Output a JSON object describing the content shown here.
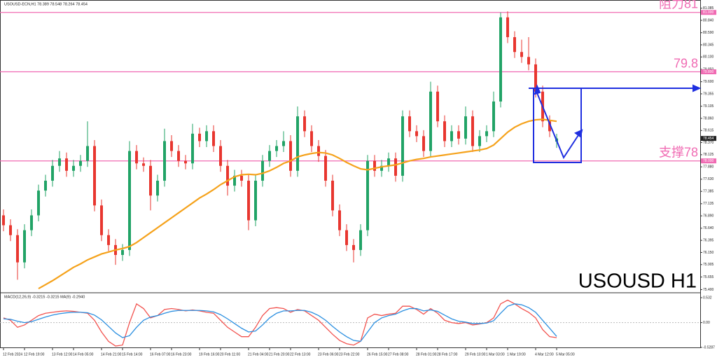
{
  "chart_data": {
    "type": "candlestick",
    "header": "USOUSD-ECN,H1 78.389 78.548 78.264 78.454",
    "title": "USOUSD H1",
    "categories": [
      "12 Feb 2024",
      null,
      null,
      "12 Feb 19:00",
      null,
      null,
      null,
      "13 Feb 12:00",
      null,
      null,
      "14 Feb 05:00",
      null,
      null,
      null,
      "14 Feb 21:00",
      null,
      null,
      "15 Feb 14:00",
      null,
      null,
      null,
      "16 Feb 07:00",
      null,
      null,
      "16 Feb 23:00",
      null,
      null,
      null,
      "19 Feb 16:00",
      null,
      null,
      "20 Feb 11:00",
      null,
      null,
      null,
      "21 Feb 04:00",
      null,
      null,
      "21 Feb 20:00",
      null,
      null,
      "22 Feb 13:00",
      null,
      null,
      null,
      "23 Feb 06:00",
      null,
      null,
      "23 Feb 22:00",
      null,
      null,
      null,
      "26 Feb 15:00",
      null,
      null,
      "27 Feb 08:00",
      null,
      null,
      null,
      "28 Feb 01:00",
      null,
      null,
      "28 Feb 17:00",
      null,
      null,
      null,
      "29 Feb 10:00",
      null,
      null,
      "1 Mar 03:00",
      null,
      null,
      "1 Mar 19:00",
      null,
      null,
      null,
      "4 Mar 12:00",
      null,
      null,
      "5 Mar 05:00"
    ],
    "open": [
      76.9,
      76.7,
      76.5,
      75.95,
      76.6,
      76.9,
      77.4,
      77.6,
      77.9,
      78.05,
      77.8,
      77.9,
      78.0,
      78.3,
      77.1,
      76.5,
      76.3,
      76.1,
      76.2,
      78.2,
      77.95,
      77.9,
      77.3,
      77.6,
      78.4,
      78.2,
      78.0,
      77.95,
      78.55,
      78.4,
      78.6,
      78.3,
      77.9,
      77.5,
      77.7,
      77.6,
      76.8,
      77.6,
      78.0,
      78.2,
      78.3,
      78.4,
      77.8,
      78.9,
      78.6,
      78.3,
      78.1,
      77.6,
      77.0,
      76.6,
      76.3,
      76.2,
      76.6,
      78.0,
      77.8,
      77.9,
      78.05,
      77.7,
      78.9,
      78.6,
      78.5,
      78.2,
      79.4,
      78.8,
      78.4,
      78.6,
      78.45,
      78.9,
      78.3,
      78.5,
      78.6,
      79.2,
      80.9,
      80.5,
      80.2,
      80.1,
      79.95,
      79.4,
      78.8,
      78.389
    ],
    "high": [
      77.02,
      76.82,
      76.62,
      76.72,
      77.02,
      77.52,
      77.72,
      78.02,
      78.2,
      78.17,
      78.02,
      78.12,
      78.8,
      78.42,
      77.22,
      76.62,
      76.42,
      76.32,
      78.4,
      78.32,
      78.07,
      78.02,
      77.72,
      78.65,
      78.52,
      78.32,
      78.12,
      78.75,
      78.67,
      78.72,
      78.72,
      78.42,
      78.02,
      77.82,
      77.82,
      77.72,
      77.72,
      78.12,
      78.32,
      78.42,
      78.6,
      78.52,
      79.1,
      79.02,
      78.72,
      78.42,
      78.22,
      77.72,
      77.12,
      76.72,
      76.42,
      76.72,
      78.12,
      78.12,
      78.02,
      78.17,
      78.17,
      79.02,
      79.02,
      78.72,
      78.62,
      79.6,
      79.52,
      78.92,
      78.72,
      78.72,
      79.1,
      79.02,
      78.62,
      78.72,
      79.4,
      81.0,
      81.02,
      80.62,
      80.45,
      80.5,
      80.07,
      79.52,
      78.92,
      78.548
    ],
    "low": [
      76.58,
      76.38,
      75.6,
      75.83,
      76.48,
      76.78,
      77.28,
      77.48,
      77.78,
      77.68,
      77.68,
      77.78,
      77.88,
      76.98,
      76.38,
      76.18,
      75.9,
      75.98,
      76.08,
      77.83,
      77.78,
      77.0,
      77.18,
      77.48,
      78.08,
      77.88,
      77.83,
      77.83,
      78.28,
      78.28,
      78.18,
      77.78,
      77.3,
      77.38,
      77.48,
      76.6,
      76.68,
      77.48,
      77.88,
      78.08,
      78.18,
      77.68,
      77.68,
      78.48,
      78.18,
      77.98,
      77.48,
      76.88,
      76.48,
      76.18,
      75.95,
      76.08,
      76.48,
      77.68,
      77.68,
      77.78,
      77.58,
      77.58,
      78.48,
      78.38,
      78.08,
      78.08,
      78.68,
      78.28,
      78.28,
      78.33,
      78.33,
      78.18,
      78.18,
      78.38,
      78.48,
      79.08,
      80.38,
      80.08,
      79.98,
      79.83,
      79.28,
      78.68,
      78.48,
      78.264
    ],
    "close": [
      76.7,
      76.5,
      75.95,
      76.6,
      76.9,
      77.4,
      77.6,
      77.9,
      78.05,
      77.8,
      77.9,
      78.0,
      78.3,
      77.1,
      76.5,
      76.3,
      76.1,
      76.2,
      78.2,
      77.95,
      77.9,
      77.3,
      77.6,
      78.4,
      78.2,
      78.0,
      77.95,
      78.55,
      78.4,
      78.6,
      78.3,
      77.9,
      77.5,
      77.7,
      77.6,
      76.8,
      77.6,
      78.0,
      78.2,
      78.3,
      78.4,
      77.8,
      78.9,
      78.6,
      78.3,
      78.1,
      77.6,
      77.0,
      76.6,
      76.3,
      76.2,
      76.6,
      78.0,
      77.8,
      77.9,
      78.05,
      77.7,
      78.9,
      78.6,
      78.5,
      78.2,
      79.4,
      78.8,
      78.4,
      78.6,
      78.45,
      78.9,
      78.3,
      78.5,
      78.6,
      79.2,
      80.9,
      80.5,
      80.2,
      80.1,
      79.95,
      79.4,
      78.8,
      78.6,
      78.454
    ],
    "up_color": "#21a366",
    "down_color": "#e8362f",
    "ma": {
      "color": "#f5a21b",
      "values": [
        null,
        null,
        null,
        null,
        null,
        75.42,
        75.5,
        75.58,
        75.67,
        75.76,
        75.85,
        75.92,
        76.0,
        76.06,
        76.12,
        76.16,
        76.2,
        76.23,
        76.27,
        76.35,
        76.45,
        76.55,
        76.65,
        76.75,
        76.85,
        76.95,
        77.05,
        77.15,
        77.25,
        77.33,
        77.42,
        77.52,
        77.6,
        77.68,
        77.72,
        77.73,
        77.72,
        77.75,
        77.8,
        77.87,
        77.95,
        78.0,
        78.08,
        78.12,
        78.15,
        78.17,
        78.16,
        78.12,
        78.05,
        77.97,
        77.9,
        77.84,
        77.82,
        77.85,
        77.88,
        77.9,
        77.92,
        77.96,
        78.0,
        78.03,
        78.05,
        78.08,
        78.1,
        78.12,
        78.14,
        78.16,
        78.18,
        78.2,
        78.22,
        78.25,
        78.32,
        78.45,
        78.58,
        78.68,
        78.75,
        78.8,
        78.83,
        78.84,
        78.82,
        78.8
      ]
    },
    "ylim": [
      75.35,
      81.18
    ],
    "yticks": [
      81.085,
      {
        "value": 80.84,
        "label": "80.840"
      },
      {
        "value": 80.59,
        "label": "80.590"
      },
      80.345,
      {
        "value": 80.1,
        "label": "80.100"
      },
      {
        "value": 79.85,
        "label": "79.850"
      },
      {
        "value": 79.6,
        "label": "79.600"
      },
      79.355,
      79.105,
      {
        "value": 78.86,
        "label": "78.860"
      },
      78.615,
      {
        "value": 78.37,
        "label": "78.370"
      },
      78.125,
      {
        "value": 77.88,
        "label": "77.880"
      },
      {
        "value": 77.63,
        "label": "77.630"
      },
      77.385,
      77.135,
      {
        "value": 76.89,
        "label": "76.890"
      },
      {
        "value": 76.64,
        "label": "76.640"
      },
      76.395,
      {
        "value": 76.15,
        "label": "76.150"
      },
      75.905,
      75.655,
      {
        "value": 75.4,
        "label": "75.400"
      }
    ],
    "levels_color": "#f06bb3",
    "levels": [
      {
        "value": 81,
        "label": "阻力81",
        "axis_label": "81.000"
      },
      {
        "value": 79.8,
        "label": "79.8",
        "axis_label": "79.800"
      },
      {
        "value": 78,
        "label": "支撑78",
        "axis_label": "78.000"
      }
    ],
    "macd": {
      "label": "MACD(12,26,9) -0.3215 -0.3215 MA(9) -0.2940",
      "ylim": [
        -0.544,
        0.607
      ],
      "yticks": [
        0.532,
        {
          "value": 0,
          "label": "0.00"
        },
        -0.5287
      ],
      "series": [
        {
          "color": "#f2534f",
          "values": [
            0.1,
            0.05,
            -0.1,
            -0.05,
            0.05,
            0.15,
            0.2,
            0.22,
            0.24,
            0.25,
            0.24,
            0.22,
            0.2,
            0.05,
            -0.2,
            -0.4,
            -0.5,
            -0.48,
            0.0,
            0.4,
            0.3,
            0.1,
            0.15,
            0.28,
            0.3,
            0.28,
            0.25,
            0.27,
            0.25,
            0.22,
            0.2,
            0.05,
            -0.1,
            -0.2,
            -0.3,
            -0.3,
            -0.1,
            0.15,
            0.3,
            0.32,
            0.3,
            0.22,
            0.28,
            0.25,
            0.15,
            0.05,
            -0.1,
            -0.25,
            -0.38,
            -0.45,
            -0.48,
            -0.4,
            0.1,
            0.18,
            0.15,
            0.18,
            0.2,
            0.35,
            0.35,
            0.28,
            0.18,
            0.3,
            0.2,
            0.05,
            0.0,
            -0.02,
            0.0,
            -0.05,
            -0.03,
            0.0,
            0.1,
            0.4,
            0.48,
            0.4,
            0.3,
            0.22,
            0.1,
            -0.15,
            -0.3,
            -0.3215
          ]
        },
        {
          "color": "#2b8fe0",
          "values": [
            0.08,
            0.07,
            0.03,
            0.0,
            0.02,
            0.07,
            0.12,
            0.16,
            0.19,
            0.21,
            0.22,
            0.22,
            0.21,
            0.16,
            0.06,
            -0.08,
            -0.22,
            -0.32,
            -0.28,
            -0.1,
            0.05,
            0.12,
            0.15,
            0.2,
            0.24,
            0.26,
            0.26,
            0.26,
            0.26,
            0.25,
            0.23,
            0.17,
            0.08,
            -0.02,
            -0.12,
            -0.2,
            -0.18,
            -0.05,
            0.1,
            0.2,
            0.25,
            0.25,
            0.26,
            0.26,
            0.22,
            0.15,
            0.05,
            -0.08,
            -0.2,
            -0.3,
            -0.38,
            -0.4,
            -0.2,
            0.0,
            0.1,
            0.15,
            0.18,
            0.25,
            0.3,
            0.3,
            0.25,
            0.27,
            0.24,
            0.16,
            0.08,
            0.03,
            0.01,
            -0.02,
            -0.02,
            -0.01,
            0.04,
            0.2,
            0.35,
            0.4,
            0.38,
            0.32,
            0.22,
            0.05,
            -0.12,
            -0.294
          ]
        }
      ]
    }
  }
}
